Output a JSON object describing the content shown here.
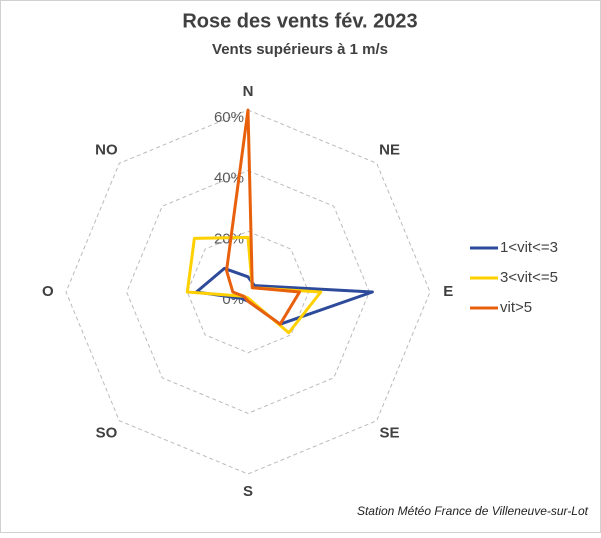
{
  "chart_data": {
    "type": "radar",
    "title": "Rose des vents fév. 2023",
    "subtitle": "Vents supérieurs à 1 m/s",
    "annotation": "Station Météo France de Villeneuve-sur-Lot",
    "categories": [
      "N",
      "NE",
      "E",
      "SE",
      "S",
      "SO",
      "O",
      "NO"
    ],
    "series": [
      {
        "name": "1<vit<=3",
        "color": "#2e4a9a",
        "values": [
          5,
          3,
          41,
          15,
          3,
          3,
          17,
          11
        ]
      },
      {
        "name": "3<vit<=5",
        "color": "#ffd000",
        "values": [
          18,
          2,
          24,
          19,
          2,
          2,
          20,
          25
        ]
      },
      {
        "name": "vit>5",
        "color": "#e8600c",
        "values": [
          60,
          2,
          17,
          15,
          3,
          2,
          5,
          10
        ]
      }
    ],
    "rlim": [
      0,
      60
    ],
    "rticks": [
      {
        "value": 0,
        "label": "0%"
      },
      {
        "value": 20,
        "label": "20%"
      },
      {
        "value": 40,
        "label": "40%"
      },
      {
        "value": 60,
        "label": "60%"
      }
    ],
    "grid": true,
    "legend": "right"
  }
}
